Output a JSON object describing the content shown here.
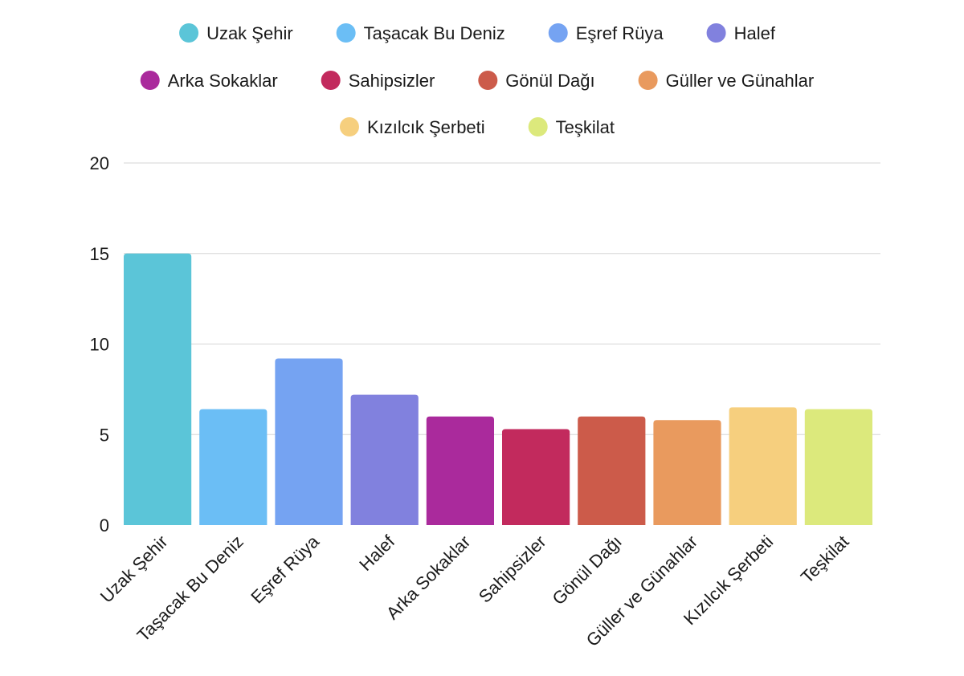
{
  "chart_data": {
    "type": "bar",
    "title": "",
    "xlabel": "",
    "ylabel": "",
    "categories": [
      "Uzak Şehir",
      "Taşacak Bu Deniz",
      "Eşref Rüya",
      "Halef",
      "Arka Sokaklar",
      "Sahipsizler",
      "Gönül Dağı",
      "Güller ve Günahlar",
      "Kızılcık Şerbeti",
      "Teşkilat"
    ],
    "values": [
      15.0,
      6.4,
      9.2,
      7.2,
      6.0,
      5.3,
      6.0,
      5.8,
      6.5,
      6.4
    ],
    "colors": [
      "#5bc5d8",
      "#6bbef5",
      "#75a3f2",
      "#8181de",
      "#aa2a9c",
      "#c22a5d",
      "#cc5b4a",
      "#e99a5e",
      "#f6cf7e",
      "#dce97c"
    ],
    "ylim": [
      0,
      20
    ],
    "yticks": [
      "0",
      "5",
      "10",
      "15",
      "20"
    ],
    "grid": true,
    "legend": {
      "placement": "top-center",
      "marker": "circle"
    }
  }
}
